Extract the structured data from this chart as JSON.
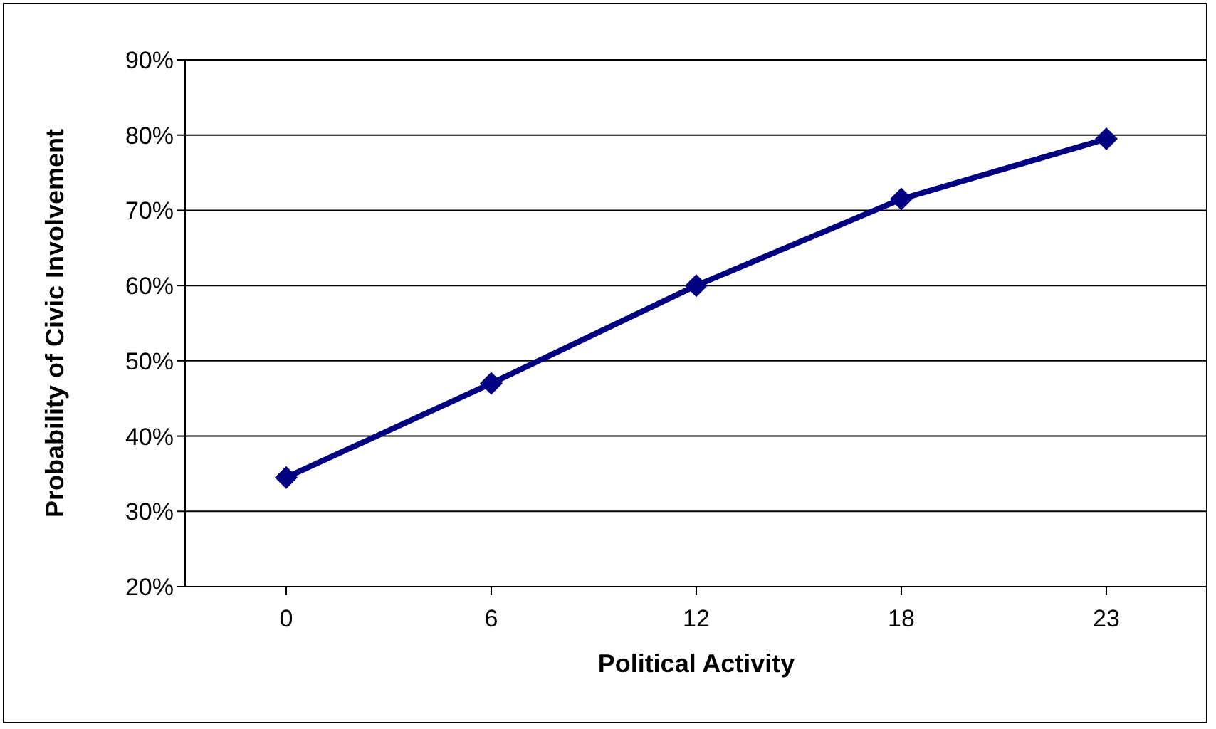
{
  "chart_data": {
    "type": "line",
    "xlabel": "Political Activity",
    "ylabel": "Probability of Civic Involvement",
    "categories": [
      "0",
      "6",
      "12",
      "18",
      "23"
    ],
    "series": [
      {
        "color": "#000080",
        "values": [
          34.5,
          47,
          60,
          71.5,
          79.5
        ]
      }
    ],
    "ylim": [
      20,
      90
    ],
    "yticks": [
      {
        "value": 20,
        "label": "20%"
      },
      {
        "value": 30,
        "label": "30%"
      },
      {
        "value": 40,
        "label": "40%"
      },
      {
        "value": 50,
        "label": "50%"
      },
      {
        "value": 60,
        "label": "60%"
      },
      {
        "value": 70,
        "label": "70%"
      },
      {
        "value": 80,
        "label": "80%"
      },
      {
        "value": 90,
        "label": "90%"
      }
    ],
    "grid": "y",
    "marker": "diamond",
    "line_style": "solid"
  }
}
